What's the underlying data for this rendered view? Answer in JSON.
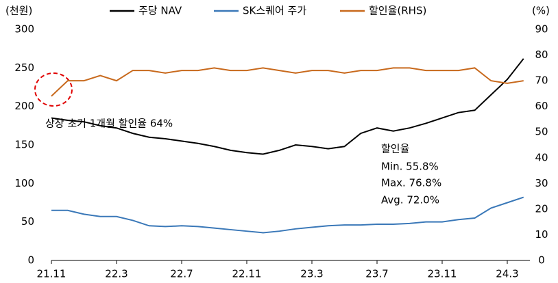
{
  "chart_data": {
    "type": "line",
    "y_label": "(천원)",
    "y2_label": "(%)",
    "categories": [
      "21.11",
      null,
      null,
      null,
      "22.3",
      null,
      null,
      null,
      "22.7",
      null,
      null,
      null,
      "22.11",
      null,
      null,
      null,
      "23.3",
      null,
      null,
      null,
      "23.7",
      null,
      null,
      null,
      "23.11",
      null,
      null,
      null,
      "24.3",
      null
    ],
    "series": [
      {
        "name": "주당 NAV",
        "color": "#000000",
        "values": [
          185,
          182,
          180,
          175,
          172,
          165,
          160,
          158,
          155,
          152,
          148,
          143,
          140,
          138,
          143,
          150,
          148,
          145,
          148,
          165,
          172,
          168,
          172,
          178,
          185,
          192,
          195,
          215,
          235,
          262
        ]
      },
      {
        "name": "SK스퀘어 주가",
        "color": "#3a78b8",
        "values": [
          65,
          65,
          60,
          57,
          57,
          52,
          45,
          44,
          45,
          44,
          42,
          40,
          38,
          36,
          38,
          41,
          43,
          45,
          46,
          46,
          47,
          47,
          48,
          50,
          50,
          53,
          55,
          68,
          75,
          82
        ]
      },
      {
        "name": "할인율(RHS)",
        "color": "#c8691c",
        "axis": "y2",
        "values": [
          64,
          70,
          70,
          72,
          70,
          74,
          74,
          73,
          74,
          74,
          75,
          74,
          74,
          75,
          74,
          73,
          74,
          74,
          73,
          74,
          74,
          75,
          75,
          74,
          74,
          74,
          75,
          70,
          69,
          70
        ]
      }
    ],
    "ylim": [
      0,
      300
    ],
    "yticks": [
      0,
      50,
      100,
      150,
      200,
      250,
      300
    ],
    "y2lim": [
      0,
      90
    ],
    "y2ticks": [
      0,
      10,
      20,
      30,
      40,
      50,
      60,
      70,
      80,
      90
    ],
    "annotations": [
      "상장 초기 1개월 할인율 64%",
      "할인율",
      "Min. 55.8%",
      "Max. 76.8%",
      "Avg. 72.0%"
    ],
    "legend": "top"
  }
}
